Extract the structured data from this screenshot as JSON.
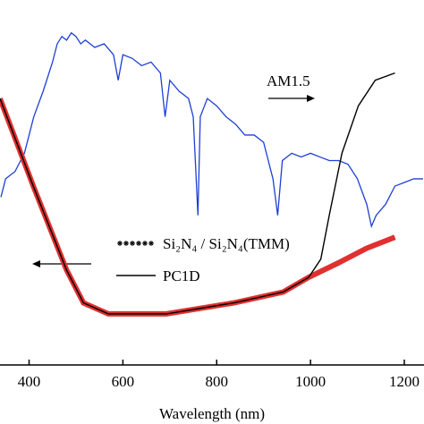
{
  "chart_data": {
    "type": "line",
    "x_label": "Wavelength (nm)",
    "annotation": "AM1.5",
    "xlim": [
      338,
      1242
    ],
    "ylim": [
      0,
      1
    ],
    "xticks": [
      400,
      600,
      800,
      1000,
      1200
    ],
    "series": [
      {
        "name": "AM1.5",
        "color": "#1f3fd6",
        "legend": false,
        "x": [
          340,
          350,
          370,
          390,
          410,
          430,
          450,
          460,
          470,
          480,
          490,
          500,
          510,
          520,
          540,
          560,
          580,
          590,
          600,
          620,
          640,
          660,
          680,
          690,
          700,
          720,
          740,
          750,
          760,
          765,
          780,
          800,
          820,
          840,
          860,
          880,
          900,
          920,
          930,
          940,
          960,
          980,
          1000,
          1020,
          1040,
          1060,
          1080,
          1100,
          1120,
          1130,
          1140,
          1160,
          1180,
          1200,
          1220,
          1240
        ],
        "values": [
          0.46,
          0.51,
          0.53,
          0.58,
          0.68,
          0.75,
          0.83,
          0.88,
          0.9,
          0.89,
          0.91,
          0.9,
          0.88,
          0.89,
          0.87,
          0.88,
          0.85,
          0.78,
          0.85,
          0.84,
          0.82,
          0.83,
          0.8,
          0.68,
          0.78,
          0.75,
          0.73,
          0.68,
          0.41,
          0.68,
          0.73,
          0.71,
          0.68,
          0.66,
          0.63,
          0.63,
          0.61,
          0.51,
          0.41,
          0.56,
          0.58,
          0.57,
          0.58,
          0.57,
          0.56,
          0.56,
          0.55,
          0.51,
          0.44,
          0.38,
          0.41,
          0.44,
          0.49,
          0.5,
          0.51,
          0.51
        ]
      },
      {
        "name": "Si₂N₄ / Si₂N₄(TMM)",
        "color": "#e03030",
        "style": "stars",
        "x": [
          338,
          409,
          480,
          516,
          569,
          693,
          836,
          942,
          996,
          1060,
          1120,
          1180
        ],
        "values": [
          0.73,
          0.49,
          0.26,
          0.17,
          0.14,
          0.14,
          0.17,
          0.2,
          0.24,
          0.28,
          0.32,
          0.35
        ]
      },
      {
        "name": "PC1D",
        "color": "#000000",
        "style": "line",
        "x": [
          338,
          409,
          480,
          516,
          569,
          693,
          836,
          942,
          996,
          1022,
          1040,
          1067,
          1102,
          1138,
          1180
        ],
        "values": [
          0.73,
          0.49,
          0.26,
          0.17,
          0.14,
          0.14,
          0.17,
          0.2,
          0.24,
          0.29,
          0.41,
          0.58,
          0.71,
          0.78,
          0.8
        ]
      }
    ]
  }
}
